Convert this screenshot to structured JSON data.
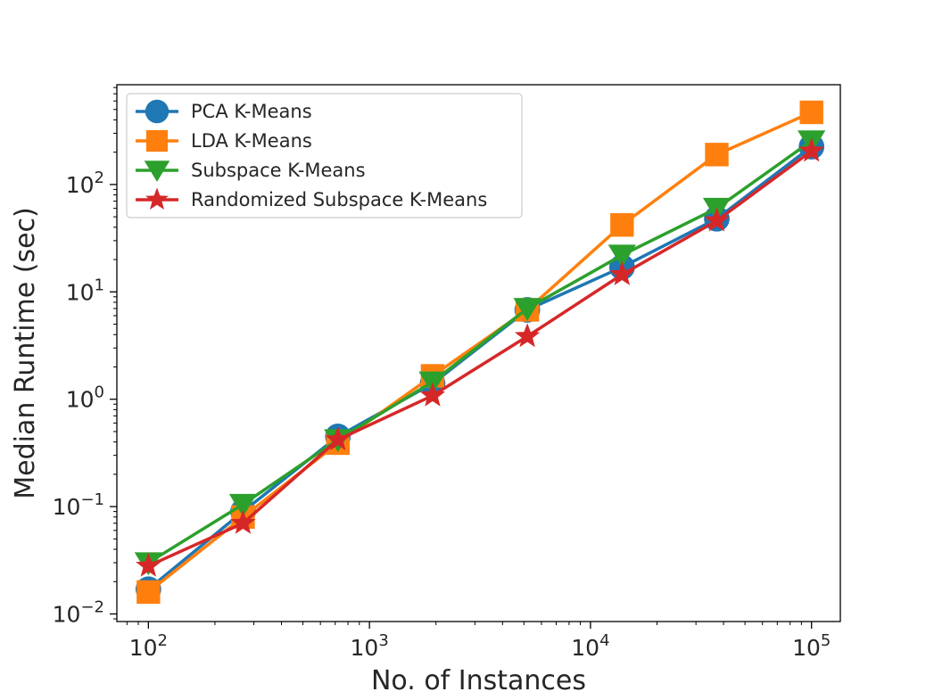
{
  "chart_data": {
    "type": "line",
    "title": "",
    "xlabel": "No. of Instances",
    "ylabel": "Median Runtime (sec)",
    "xscale": "log",
    "yscale": "log",
    "xlim": [
      72,
      135000
    ],
    "ylim": [
      0.0085,
      850
    ],
    "grid": false,
    "legend_position": "top-left",
    "x_ticks": [
      {
        "value": 100,
        "base": "10",
        "exp": "2"
      },
      {
        "value": 1000,
        "base": "10",
        "exp": "3"
      },
      {
        "value": 10000,
        "base": "10",
        "exp": "4"
      },
      {
        "value": 100000,
        "base": "10",
        "exp": "5"
      }
    ],
    "y_ticks": [
      {
        "value": 0.01,
        "base": "10",
        "exp": "−2"
      },
      {
        "value": 0.1,
        "base": "10",
        "exp": "−1"
      },
      {
        "value": 1,
        "base": "10",
        "exp": "0"
      },
      {
        "value": 10,
        "base": "10",
        "exp": "1"
      },
      {
        "value": 100,
        "base": "10",
        "exp": "2"
      }
    ],
    "x": [
      100,
      268,
      720,
      1931,
      5179,
      13895,
      37276,
      100000
    ],
    "series": [
      {
        "name": "PCA K-Means",
        "color": "#1f77b4",
        "marker": "circle",
        "values": [
          0.017,
          0.09,
          0.45,
          1.4,
          6.8,
          17,
          48,
          225
        ]
      },
      {
        "name": "LDA K-Means",
        "color": "#ff7f0e",
        "marker": "square",
        "values": [
          0.016,
          0.08,
          0.39,
          1.65,
          6.8,
          42,
          190,
          470
        ]
      },
      {
        "name": "Subspace K-Means",
        "color": "#2ca02c",
        "marker": "triangle-down",
        "values": [
          0.03,
          0.105,
          0.42,
          1.45,
          7.0,
          22,
          60,
          255
        ]
      },
      {
        "name": "Randomized Subspace K-Means",
        "color": "#d62728",
        "marker": "star",
        "values": [
          0.028,
          0.07,
          0.42,
          1.08,
          3.85,
          14.5,
          46,
          205
        ]
      }
    ]
  }
}
